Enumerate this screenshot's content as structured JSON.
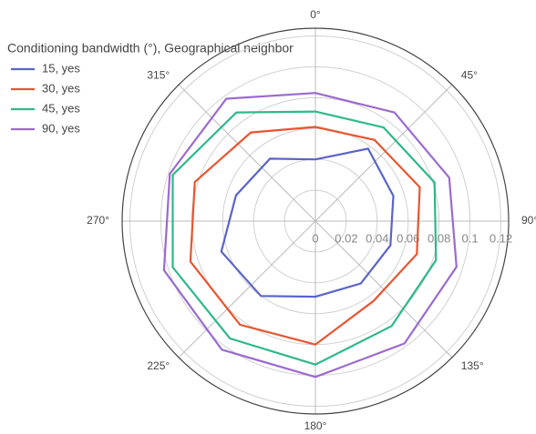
{
  "chart_data": {
    "type": "polar",
    "legend_title": "Conditioning bandwidth (°), Geographical neighbor",
    "theta": [
      0,
      36,
      72,
      108,
      144,
      180,
      216,
      252,
      288,
      324
    ],
    "series": [
      {
        "name": "15, yes",
        "color": "#5a64c8",
        "values": [
          0.04,
          0.058,
          0.053,
          0.051,
          0.05,
          0.049,
          0.06,
          0.064,
          0.054,
          0.05
        ]
      },
      {
        "name": "30, yes",
        "color": "#e8552f",
        "values": [
          0.061,
          0.065,
          0.071,
          0.069,
          0.064,
          0.08,
          0.083,
          0.085,
          0.082,
          0.071
        ]
      },
      {
        "name": "45, yes",
        "color": "#2fb88a",
        "values": [
          0.071,
          0.075,
          0.081,
          0.082,
          0.084,
          0.093,
          0.094,
          0.097,
          0.097,
          0.087
        ]
      },
      {
        "name": "90, yes",
        "color": "#9b6ad0",
        "values": [
          0.083,
          0.087,
          0.091,
          0.096,
          0.098,
          0.101,
          0.103,
          0.103,
          0.099,
          0.098
        ]
      }
    ],
    "rlim": [
      0,
      0.125
    ],
    "rticks": [
      0,
      0.02,
      0.04,
      0.06,
      0.08,
      0.1,
      0.12
    ],
    "thetaticks": [
      {
        "value": 0,
        "label": "0°"
      },
      {
        "value": 45,
        "label": "45°"
      },
      {
        "value": 90,
        "label": "90°"
      },
      {
        "value": 135,
        "label": "135°"
      },
      {
        "value": 180,
        "label": "180°"
      },
      {
        "value": 225,
        "label": "225°"
      },
      {
        "value": 270,
        "label": "270°"
      },
      {
        "value": 315,
        "label": "315°"
      }
    ],
    "grid": true
  }
}
